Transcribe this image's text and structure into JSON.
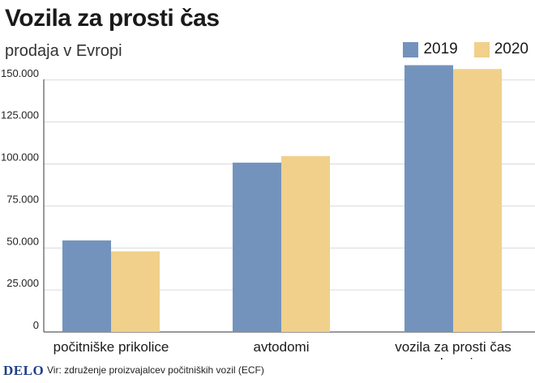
{
  "chart_data": {
    "type": "bar",
    "title": "Vozila za prosti čas",
    "subtitle": "prodaja v Evropi",
    "categories": [
      "počitniške prikolice",
      "avtodomi",
      "vozila za prosti čas skupaj"
    ],
    "category_lines": [
      [
        "počitniške prikolice"
      ],
      [
        "avtodomi"
      ],
      [
        "vozila za prosti čas",
        "skupaj"
      ]
    ],
    "series": [
      {
        "name": "2019",
        "color": "#7393bd",
        "values": [
          54500,
          100800,
          158800
        ]
      },
      {
        "name": "2020",
        "color": "#f0d08a",
        "values": [
          48000,
          104700,
          156500
        ]
      }
    ],
    "ylim": [
      0,
      160000
    ],
    "yticks": [
      0,
      25000,
      50000,
      75000,
      100000,
      125000,
      150000
    ],
    "ytick_labels": [
      "0",
      "25.000",
      "50.000",
      "75.000",
      "100.000",
      "125.000",
      "150.000"
    ],
    "grid": true,
    "legend_position": "top-right"
  },
  "footer": {
    "logo": "DELO",
    "source": "Vir: združenje proizvajalcev počitniških vozil (ECF)"
  }
}
